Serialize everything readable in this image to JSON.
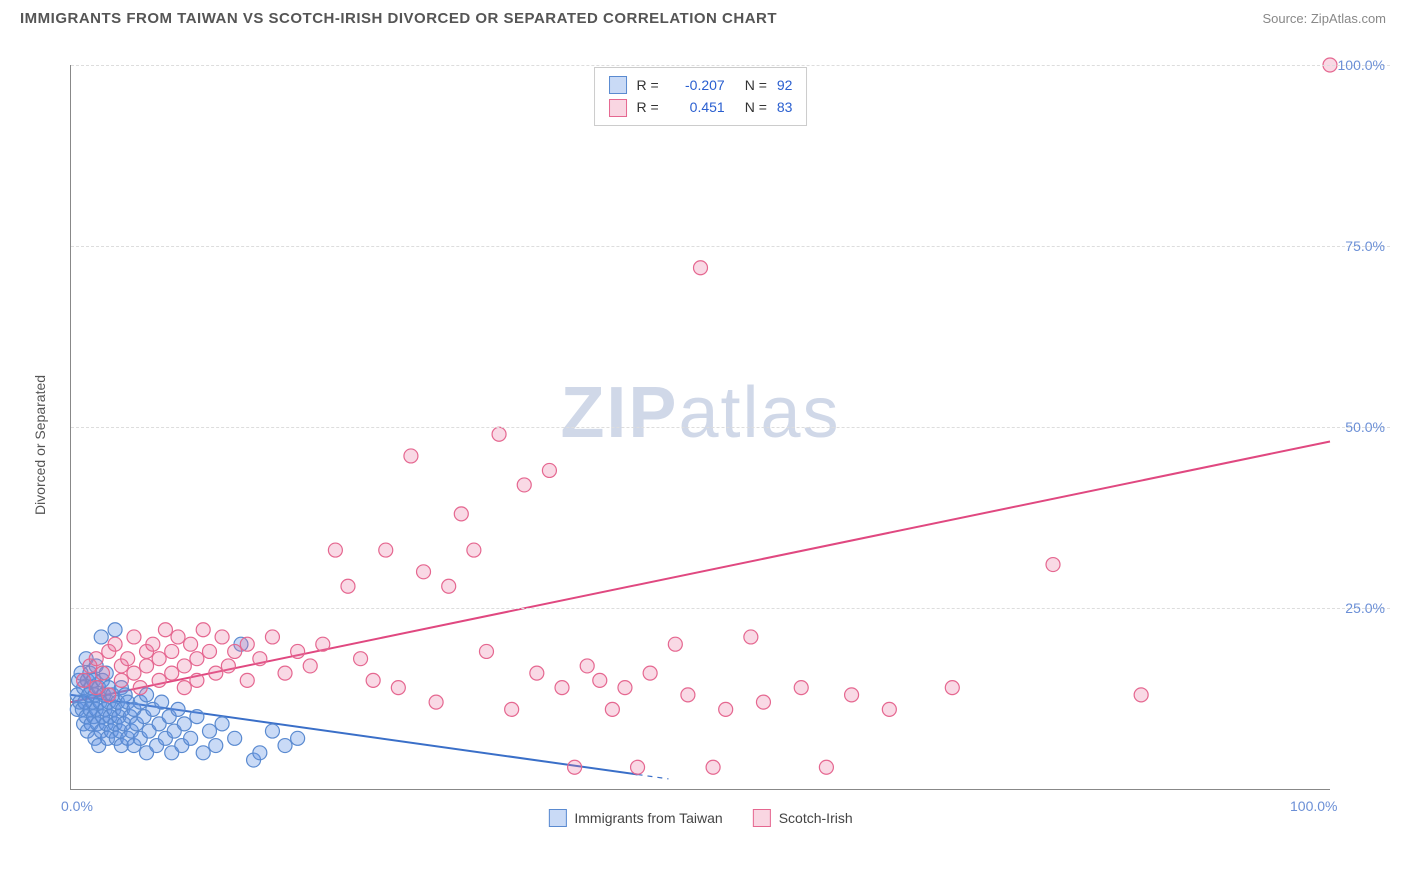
{
  "header": {
    "title": "IMMIGRANTS FROM TAIWAN VS SCOTCH-IRISH DIVORCED OR SEPARATED CORRELATION CHART",
    "source": "Source: ZipAtlas.com"
  },
  "watermark": {
    "zip": "ZIP",
    "atlas": "atlas"
  },
  "chart": {
    "type": "scatter",
    "y_axis_label": "Divorced or Separated",
    "xlim": [
      0,
      100
    ],
    "ylim": [
      0,
      100
    ],
    "xticks": [
      {
        "v": 0,
        "label": "0.0%"
      },
      {
        "v": 100,
        "label": "100.0%"
      }
    ],
    "yticks": [
      {
        "v": 25,
        "label": "25.0%"
      },
      {
        "v": 50,
        "label": "50.0%"
      },
      {
        "v": 75,
        "label": "75.0%"
      },
      {
        "v": 100,
        "label": "100.0%"
      }
    ],
    "background_color": "#ffffff",
    "grid_color": "#dddddd",
    "axis_color": "#888888",
    "tick_label_color": "#6b8fd6",
    "marker_radius": 7,
    "marker_stroke_width": 1.2,
    "trend_line_width": 2,
    "series": [
      {
        "name": "Immigrants from Taiwan",
        "fill": "rgba(100,150,230,0.35)",
        "stroke": "#5a8ad0",
        "r_value": "-0.207",
        "n_value": "92",
        "trend": {
          "x1": 0,
          "y1": 13,
          "x2": 45,
          "y2": 2,
          "color": "#3a6fc8",
          "dash_extend": true
        },
        "points": [
          [
            0.5,
            11
          ],
          [
            0.5,
            13
          ],
          [
            0.6,
            15
          ],
          [
            0.7,
            12
          ],
          [
            0.8,
            16
          ],
          [
            0.9,
            11
          ],
          [
            1.0,
            9
          ],
          [
            1.0,
            14
          ],
          [
            1.1,
            12
          ],
          [
            1.2,
            18
          ],
          [
            1.2,
            10
          ],
          [
            1.3,
            15
          ],
          [
            1.3,
            8
          ],
          [
            1.4,
            13
          ],
          [
            1.5,
            11
          ],
          [
            1.5,
            16
          ],
          [
            1.6,
            9
          ],
          [
            1.6,
            14
          ],
          [
            1.7,
            12
          ],
          [
            1.8,
            10
          ],
          [
            1.8,
            15
          ],
          [
            1.9,
            7
          ],
          [
            1.9,
            13
          ],
          [
            2.0,
            11
          ],
          [
            2.0,
            17
          ],
          [
            2.1,
            9
          ],
          [
            2.2,
            14
          ],
          [
            2.2,
            6
          ],
          [
            2.3,
            12
          ],
          [
            2.4,
            8
          ],
          [
            2.4,
            21
          ],
          [
            2.5,
            10
          ],
          [
            2.5,
            15
          ],
          [
            2.6,
            13
          ],
          [
            2.7,
            11
          ],
          [
            2.8,
            9
          ],
          [
            2.8,
            16
          ],
          [
            2.9,
            7
          ],
          [
            3.0,
            12
          ],
          [
            3.0,
            14
          ],
          [
            3.1,
            10
          ],
          [
            3.2,
            8
          ],
          [
            3.3,
            13
          ],
          [
            3.4,
            11
          ],
          [
            3.5,
            9
          ],
          [
            3.5,
            22
          ],
          [
            3.6,
            7
          ],
          [
            3.7,
            12
          ],
          [
            3.8,
            10
          ],
          [
            3.9,
            8
          ],
          [
            4.0,
            14
          ],
          [
            4.0,
            6
          ],
          [
            4.1,
            11
          ],
          [
            4.2,
            9
          ],
          [
            4.3,
            13
          ],
          [
            4.5,
            7
          ],
          [
            4.5,
            12
          ],
          [
            4.7,
            10
          ],
          [
            4.8,
            8
          ],
          [
            5.0,
            11
          ],
          [
            5.0,
            6
          ],
          [
            5.2,
            9
          ],
          [
            5.5,
            12
          ],
          [
            5.5,
            7
          ],
          [
            5.8,
            10
          ],
          [
            6.0,
            5
          ],
          [
            6.0,
            13
          ],
          [
            6.2,
            8
          ],
          [
            6.5,
            11
          ],
          [
            6.8,
            6
          ],
          [
            7.0,
            9
          ],
          [
            7.2,
            12
          ],
          [
            7.5,
            7
          ],
          [
            7.8,
            10
          ],
          [
            8.0,
            5
          ],
          [
            8.2,
            8
          ],
          [
            8.5,
            11
          ],
          [
            8.8,
            6
          ],
          [
            9.0,
            9
          ],
          [
            9.5,
            7
          ],
          [
            10.0,
            10
          ],
          [
            10.5,
            5
          ],
          [
            11.0,
            8
          ],
          [
            11.5,
            6
          ],
          [
            12.0,
            9
          ],
          [
            13.0,
            7
          ],
          [
            13.5,
            20
          ],
          [
            14.5,
            4
          ],
          [
            15.0,
            5
          ],
          [
            16.0,
            8
          ],
          [
            17.0,
            6
          ],
          [
            18.0,
            7
          ]
        ]
      },
      {
        "name": "Scotch-Irish",
        "fill": "rgba(235,120,160,0.28)",
        "stroke": "#e56790",
        "r_value": "0.451",
        "n_value": "83",
        "trend": {
          "x1": 0,
          "y1": 12,
          "x2": 100,
          "y2": 48,
          "color": "#e04880",
          "dash_extend": false
        },
        "points": [
          [
            1,
            15
          ],
          [
            1.5,
            17
          ],
          [
            2,
            14
          ],
          [
            2,
            18
          ],
          [
            2.5,
            16
          ],
          [
            3,
            19
          ],
          [
            3,
            13
          ],
          [
            3.5,
            20
          ],
          [
            4,
            17
          ],
          [
            4,
            15
          ],
          [
            4.5,
            18
          ],
          [
            5,
            16
          ],
          [
            5,
            21
          ],
          [
            5.5,
            14
          ],
          [
            6,
            19
          ],
          [
            6,
            17
          ],
          [
            6.5,
            20
          ],
          [
            7,
            15
          ],
          [
            7,
            18
          ],
          [
            7.5,
            22
          ],
          [
            8,
            16
          ],
          [
            8,
            19
          ],
          [
            8.5,
            21
          ],
          [
            9,
            17
          ],
          [
            9,
            14
          ],
          [
            9.5,
            20
          ],
          [
            10,
            18
          ],
          [
            10,
            15
          ],
          [
            10.5,
            22
          ],
          [
            11,
            19
          ],
          [
            11.5,
            16
          ],
          [
            12,
            21
          ],
          [
            12.5,
            17
          ],
          [
            13,
            19
          ],
          [
            14,
            20
          ],
          [
            14,
            15
          ],
          [
            15,
            18
          ],
          [
            16,
            21
          ],
          [
            17,
            16
          ],
          [
            18,
            19
          ],
          [
            19,
            17
          ],
          [
            20,
            20
          ],
          [
            21,
            33
          ],
          [
            22,
            28
          ],
          [
            23,
            18
          ],
          [
            24,
            15
          ],
          [
            25,
            33
          ],
          [
            26,
            14
          ],
          [
            27,
            46
          ],
          [
            28,
            30
          ],
          [
            29,
            12
          ],
          [
            30,
            28
          ],
          [
            31,
            38
          ],
          [
            32,
            33
          ],
          [
            33,
            19
          ],
          [
            34,
            49
          ],
          [
            35,
            11
          ],
          [
            36,
            42
          ],
          [
            37,
            16
          ],
          [
            38,
            44
          ],
          [
            39,
            14
          ],
          [
            40,
            3
          ],
          [
            41,
            17
          ],
          [
            42,
            15
          ],
          [
            43,
            11
          ],
          [
            44,
            14
          ],
          [
            45,
            3
          ],
          [
            46,
            16
          ],
          [
            48,
            20
          ],
          [
            49,
            13
          ],
          [
            50,
            72
          ],
          [
            51,
            3
          ],
          [
            52,
            11
          ],
          [
            54,
            21
          ],
          [
            55,
            12
          ],
          [
            58,
            14
          ],
          [
            60,
            3
          ],
          [
            62,
            13
          ],
          [
            65,
            11
          ],
          [
            70,
            14
          ],
          [
            78,
            31
          ],
          [
            85,
            13
          ],
          [
            100,
            100
          ]
        ]
      }
    ],
    "legend_bottom": [
      {
        "label": "Immigrants from Taiwan",
        "swatch": "blue"
      },
      {
        "label": "Scotch-Irish",
        "swatch": "pink"
      }
    ]
  }
}
